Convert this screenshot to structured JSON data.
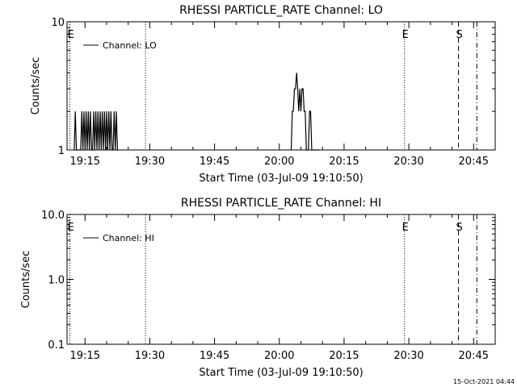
{
  "footer": {
    "timestamp": "15-Oct-2021 04:44"
  },
  "chart_data": [
    {
      "type": "line",
      "title": "RHESSI PARTICLE_RATE Channel: LO",
      "xlabel": "Start Time (03-Jul-09 19:10:50)",
      "ylabel": "Counts/sec",
      "yscale": "log",
      "xlim": [
        "19:10:50",
        "20:50:00"
      ],
      "ylim": [
        1,
        10
      ],
      "x_ticks": [
        "19:15",
        "19:30",
        "19:45",
        "20:00",
        "20:15",
        "20:30",
        "20:45"
      ],
      "y_ticks": [
        "1",
        "10"
      ],
      "legend": "Channel: LO",
      "legend_position": "top-left",
      "markers": [
        {
          "time": "19:11:30",
          "label": "E",
          "style": "dotted"
        },
        {
          "time": "19:29:00",
          "label": "",
          "style": "dotted"
        },
        {
          "time": "20:29:00",
          "label": "E",
          "style": "dotted"
        },
        {
          "time": "20:41:30",
          "label": "S",
          "style": "dashed"
        },
        {
          "time": "20:45:45",
          "label": "",
          "style": "dashdot"
        }
      ],
      "series": [
        {
          "x": [
            "19:12:30",
            "19:12:45",
            "19:13:00",
            "19:13:15",
            "19:13:45",
            "19:14:00",
            "19:14:15",
            "19:14:30",
            "19:14:45",
            "19:15:00",
            "19:15:15",
            "19:15:30",
            "19:15:45",
            "19:16:00",
            "19:16:15",
            "19:16:30",
            "19:16:45",
            "19:17:00",
            "19:17:15",
            "19:17:30",
            "19:17:45",
            "19:18:00",
            "19:18:15",
            "19:18:30",
            "19:18:45",
            "19:19:00",
            "19:19:15",
            "19:19:30",
            "19:19:45",
            "19:20:00",
            "19:20:15",
            "19:20:30",
            "19:20:45",
            "19:21:00",
            "19:21:15",
            "19:21:30",
            "19:21:45",
            "19:22:00",
            "19:22:15",
            "19:22:30",
            "19:22:45",
            "20:02:45",
            "20:03:00",
            "20:03:15",
            "20:03:30",
            "20:03:45",
            "20:04:00",
            "20:04:15",
            "20:04:30",
            "20:04:45",
            "20:05:00",
            "20:05:15",
            "20:05:30",
            "20:05:45",
            "20:06:00",
            "20:06:15",
            "20:06:30",
            "20:06:45",
            "20:07:00",
            "20:07:15",
            "20:07:30",
            "20:07:45",
            "20:08:00",
            "20:08:15",
            "20:08:30",
            "20:08:45",
            "20:09:00",
            "20:09:15"
          ],
          "values": [
            1,
            2,
            1,
            1,
            1,
            1,
            2,
            1,
            2,
            1,
            2,
            1,
            2,
            1,
            2,
            1,
            1,
            2,
            1,
            2,
            1,
            2,
            1,
            2,
            1,
            2,
            1,
            2,
            1,
            2,
            1,
            2,
            1,
            2,
            1,
            1,
            2,
            1,
            2,
            1,
            1,
            1,
            2,
            2,
            3,
            3,
            4,
            3,
            2,
            3,
            2,
            3,
            3,
            2,
            2,
            1,
            1,
            1,
            2,
            2,
            1,
            1,
            1,
            1,
            1,
            1,
            1,
            1
          ]
        }
      ]
    },
    {
      "type": "line",
      "title": "RHESSI PARTICLE_RATE Channel: HI",
      "xlabel": "Start Time (03-Jul-09 19:10:50)",
      "ylabel": "Counts/sec",
      "yscale": "log",
      "xlim": [
        "19:10:50",
        "20:50:00"
      ],
      "ylim": [
        0.1,
        10
      ],
      "x_ticks": [
        "19:15",
        "19:30",
        "19:45",
        "20:00",
        "20:15",
        "20:30",
        "20:45"
      ],
      "y_ticks": [
        "0.1",
        "1.0",
        "10.0"
      ],
      "legend": "Channel: HI",
      "legend_position": "top-left",
      "markers": [
        {
          "time": "19:11:30",
          "label": "E",
          "style": "dotted"
        },
        {
          "time": "19:29:00",
          "label": "",
          "style": "dotted"
        },
        {
          "time": "20:29:00",
          "label": "E",
          "style": "dotted"
        },
        {
          "time": "20:41:30",
          "label": "S",
          "style": "dashed"
        },
        {
          "time": "20:45:45",
          "label": "",
          "style": "dashdot"
        }
      ],
      "series": [
        {
          "x": [],
          "values": []
        }
      ]
    }
  ]
}
